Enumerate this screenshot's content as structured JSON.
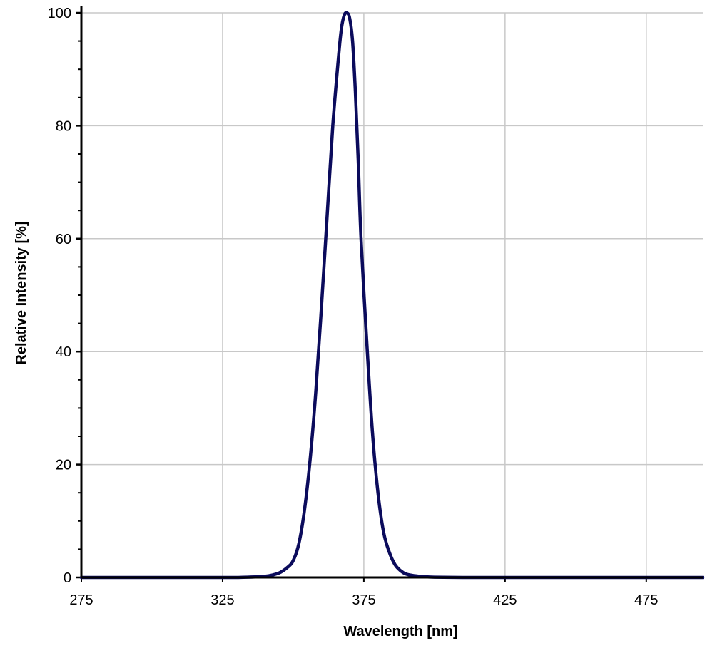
{
  "chart_data": {
    "type": "line",
    "title": "",
    "xlabel": "Wavelength [nm]",
    "ylabel": "Relative Intensity [%]",
    "xlim": [
      275,
      495
    ],
    "ylim": [
      0,
      100
    ],
    "xticks": [
      275,
      325,
      375,
      425,
      475
    ],
    "yticks": [
      0,
      20,
      40,
      60,
      80,
      100
    ],
    "grid": true,
    "legend": "none",
    "series": [
      {
        "color": "#0b0b5c",
        "x": [
          275,
          300,
          320,
          330,
          340,
          345,
          348,
          350,
          352,
          354,
          356,
          358,
          360,
          362,
          364,
          366,
          367,
          368,
          369,
          370,
          371,
          372,
          373,
          374,
          376,
          378,
          380,
          382,
          384,
          386,
          388,
          390,
          393,
          396,
          400,
          410,
          420,
          440,
          460,
          495
        ],
        "y": [
          0,
          0,
          0,
          0,
          0.2,
          0.8,
          1.8,
          3,
          6,
          12,
          21,
          33,
          48,
          64,
          80,
          92,
          97,
          99.5,
          100,
          99,
          95,
          86,
          74,
          60,
          42,
          26,
          15,
          8,
          4.5,
          2.3,
          1.2,
          0.6,
          0.3,
          0.15,
          0.05,
          0,
          0,
          0,
          0,
          0
        ]
      }
    ]
  }
}
